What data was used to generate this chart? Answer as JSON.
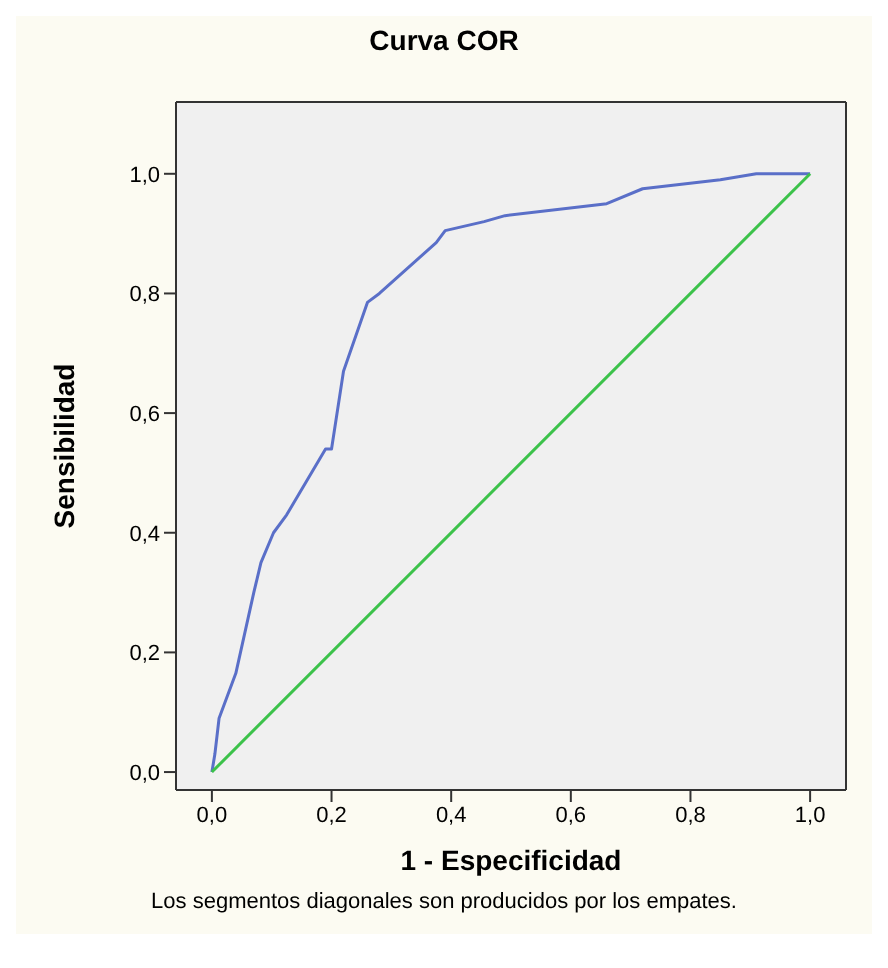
{
  "chart_data": {
    "type": "line",
    "title": "Curva COR",
    "xlabel": "1 - Especificidad",
    "ylabel": "Sensibilidad",
    "annotations": [
      "Los segmentos diagonales son producidos por los empates."
    ],
    "xlim": [
      -0.06,
      1.06
    ],
    "ylim": [
      -0.03,
      1.12
    ],
    "xticks": [
      {
        "value": 0,
        "label": "0,0"
      },
      {
        "value": 0.2,
        "label": "0,2"
      },
      {
        "value": 0.4,
        "label": "0,4"
      },
      {
        "value": 0.6,
        "label": "0,6"
      },
      {
        "value": 0.8,
        "label": "0,8"
      },
      {
        "value": 1,
        "label": "1,0"
      }
    ],
    "yticks": [
      {
        "value": 0,
        "label": "0,0"
      },
      {
        "value": 0.2,
        "label": "0,2"
      },
      {
        "value": 0.4,
        "label": "0,4"
      },
      {
        "value": 0.6,
        "label": "0,6"
      },
      {
        "value": 0.8,
        "label": "0,8"
      },
      {
        "value": 1,
        "label": "1,0"
      }
    ],
    "marker": "none",
    "line_style": "solid",
    "series": [
      {
        "color": "#5a6fc8",
        "x": [
          0,
          0.005,
          0.012,
          0.04,
          0.07,
          0.082,
          0.103,
          0.125,
          0.19,
          0.2,
          0.22,
          0.26,
          0.28,
          0.375,
          0.39,
          0.455,
          0.49,
          0.66,
          0.72,
          0.85,
          0.91,
          1
        ],
        "values": [
          0,
          0.03,
          0.09,
          0.165,
          0.3,
          0.35,
          0.4,
          0.43,
          0.54,
          0.54,
          0.67,
          0.785,
          0.8,
          0.885,
          0.905,
          0.92,
          0.93,
          0.95,
          0.975,
          0.99,
          1,
          1
        ]
      },
      {
        "color": "#3cc24a",
        "x": [
          0,
          1
        ],
        "values": [
          0,
          1
        ]
      }
    ]
  }
}
